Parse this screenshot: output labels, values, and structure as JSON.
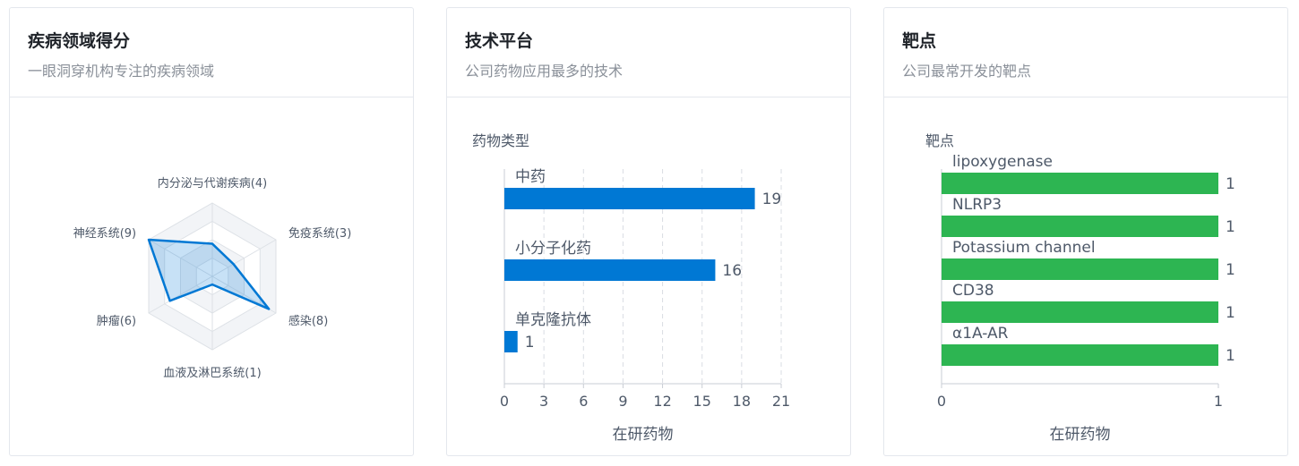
{
  "cards": [
    {
      "title": "疾病领域得分",
      "subtitle": "一眼洞穿机构专注的疾病领域"
    },
    {
      "title": "技术平台",
      "subtitle": "公司药物应用最多的技术"
    },
    {
      "title": "靶点",
      "subtitle": "公司最常开发的靶点"
    }
  ],
  "chart_data": [
    {
      "type": "radar",
      "axes": [
        "内分泌与代谢疾病",
        "免疫系统",
        "感染",
        "血液及淋巴系统",
        "肿瘤",
        "神经系统"
      ],
      "axis_labels": [
        "内分泌与代谢疾病(4)",
        "免疫系统(3)",
        "感染(8)",
        "血液及淋巴系统(1)",
        "肿瘤(6)",
        "神经系统(9)"
      ],
      "values": [
        4,
        3,
        8,
        1,
        6,
        9
      ],
      "max": 9,
      "color": "#0078d4"
    },
    {
      "type": "bar",
      "orientation": "horizontal",
      "title": "药物类型",
      "categories": [
        "中药",
        "小分子化药",
        "单克隆抗体"
      ],
      "values": [
        19,
        16,
        1
      ],
      "xlabel": "在研药物",
      "xlim": [
        0,
        21
      ],
      "xticks": [
        0,
        3,
        6,
        9,
        12,
        15,
        18,
        21
      ],
      "grid": true,
      "color": "#0078d4"
    },
    {
      "type": "bar",
      "orientation": "horizontal",
      "title": "靶点",
      "categories": [
        "lipoxygenase",
        "NLRP3",
        "Potassium channel",
        "CD38",
        "α1A-AR"
      ],
      "values": [
        1,
        1,
        1,
        1,
        1
      ],
      "xlabel": "在研药物",
      "xlim": [
        0,
        1
      ],
      "xticks": [
        0,
        1
      ],
      "color": "#2db552"
    }
  ]
}
